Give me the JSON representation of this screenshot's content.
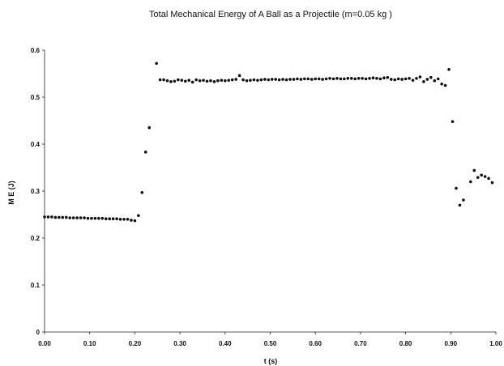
{
  "chart_data": {
    "type": "scatter",
    "title": "Total Mechanical Energy of A Ball as a Projectile (m=0.05 kg )",
    "xlabel": "t (s)",
    "ylabel": "M E (J)",
    "xlim": [
      0,
      1.0
    ],
    "ylim": [
      0,
      0.6
    ],
    "x_ticks": [
      "0.00",
      "0.10",
      "0.20",
      "0.30",
      "0.40",
      "0.50",
      "0.60",
      "0.70",
      "0.80",
      "0.90",
      "1.00"
    ],
    "y_ticks": [
      "0",
      "0.1",
      "0.2",
      "0.3",
      "0.4",
      "0.5",
      "0.6"
    ],
    "grid": false,
    "marker_color": "#111111",
    "series": [
      {
        "points": [
          [
            0.0,
            0.245
          ],
          [
            0.008,
            0.245
          ],
          [
            0.016,
            0.245
          ],
          [
            0.024,
            0.244
          ],
          [
            0.032,
            0.244
          ],
          [
            0.04,
            0.244
          ],
          [
            0.048,
            0.244
          ],
          [
            0.056,
            0.243
          ],
          [
            0.064,
            0.243
          ],
          [
            0.072,
            0.243
          ],
          [
            0.08,
            0.243
          ],
          [
            0.088,
            0.243
          ],
          [
            0.096,
            0.242
          ],
          [
            0.104,
            0.242
          ],
          [
            0.112,
            0.242
          ],
          [
            0.12,
            0.242
          ],
          [
            0.128,
            0.242
          ],
          [
            0.136,
            0.241
          ],
          [
            0.144,
            0.241
          ],
          [
            0.152,
            0.241
          ],
          [
            0.16,
            0.241
          ],
          [
            0.168,
            0.24
          ],
          [
            0.176,
            0.24
          ],
          [
            0.184,
            0.24
          ],
          [
            0.192,
            0.238
          ],
          [
            0.2,
            0.237
          ],
          [
            0.208,
            0.248
          ],
          [
            0.216,
            0.297
          ],
          [
            0.224,
            0.383
          ],
          [
            0.232,
            0.435
          ],
          [
            0.248,
            0.572
          ],
          [
            0.256,
            0.537
          ],
          [
            0.264,
            0.537
          ],
          [
            0.272,
            0.535
          ],
          [
            0.28,
            0.533
          ],
          [
            0.288,
            0.534
          ],
          [
            0.296,
            0.537
          ],
          [
            0.304,
            0.536
          ],
          [
            0.312,
            0.534
          ],
          [
            0.32,
            0.536
          ],
          [
            0.328,
            0.532
          ],
          [
            0.336,
            0.537
          ],
          [
            0.344,
            0.535
          ],
          [
            0.352,
            0.536
          ],
          [
            0.36,
            0.534
          ],
          [
            0.368,
            0.535
          ],
          [
            0.376,
            0.533
          ],
          [
            0.384,
            0.535
          ],
          [
            0.392,
            0.536
          ],
          [
            0.4,
            0.535
          ],
          [
            0.408,
            0.536
          ],
          [
            0.416,
            0.537
          ],
          [
            0.424,
            0.538
          ],
          [
            0.432,
            0.546
          ],
          [
            0.44,
            0.537
          ],
          [
            0.448,
            0.535
          ],
          [
            0.456,
            0.536
          ],
          [
            0.464,
            0.537
          ],
          [
            0.472,
            0.536
          ],
          [
            0.48,
            0.537
          ],
          [
            0.488,
            0.538
          ],
          [
            0.496,
            0.537
          ],
          [
            0.504,
            0.538
          ],
          [
            0.512,
            0.538
          ],
          [
            0.52,
            0.537
          ],
          [
            0.528,
            0.538
          ],
          [
            0.536,
            0.537
          ],
          [
            0.544,
            0.538
          ],
          [
            0.552,
            0.538
          ],
          [
            0.56,
            0.539
          ],
          [
            0.568,
            0.538
          ],
          [
            0.576,
            0.539
          ],
          [
            0.584,
            0.539
          ],
          [
            0.592,
            0.538
          ],
          [
            0.6,
            0.539
          ],
          [
            0.608,
            0.539
          ],
          [
            0.616,
            0.538
          ],
          [
            0.624,
            0.539
          ],
          [
            0.632,
            0.54
          ],
          [
            0.64,
            0.539
          ],
          [
            0.648,
            0.54
          ],
          [
            0.656,
            0.539
          ],
          [
            0.664,
            0.539
          ],
          [
            0.672,
            0.54
          ],
          [
            0.68,
            0.54
          ],
          [
            0.688,
            0.539
          ],
          [
            0.696,
            0.54
          ],
          [
            0.704,
            0.54
          ],
          [
            0.712,
            0.539
          ],
          [
            0.72,
            0.54
          ],
          [
            0.728,
            0.541
          ],
          [
            0.736,
            0.54
          ],
          [
            0.744,
            0.539
          ],
          [
            0.752,
            0.541
          ],
          [
            0.76,
            0.542
          ],
          [
            0.768,
            0.538
          ],
          [
            0.776,
            0.537
          ],
          [
            0.784,
            0.539
          ],
          [
            0.792,
            0.538
          ],
          [
            0.8,
            0.539
          ],
          [
            0.808,
            0.54
          ],
          [
            0.816,
            0.536
          ],
          [
            0.824,
            0.54
          ],
          [
            0.832,
            0.543
          ],
          [
            0.84,
            0.533
          ],
          [
            0.848,
            0.538
          ],
          [
            0.856,
            0.542
          ],
          [
            0.864,
            0.535
          ],
          [
            0.872,
            0.539
          ],
          [
            0.88,
            0.528
          ],
          [
            0.888,
            0.525
          ],
          [
            0.896,
            0.559
          ],
          [
            0.904,
            0.448
          ],
          [
            0.912,
            0.306
          ],
          [
            0.92,
            0.27
          ],
          [
            0.928,
            0.281
          ],
          [
            0.944,
            0.32
          ],
          [
            0.952,
            0.344
          ],
          [
            0.96,
            0.329
          ],
          [
            0.968,
            0.334
          ],
          [
            0.976,
            0.331
          ],
          [
            0.984,
            0.327
          ],
          [
            0.992,
            0.318
          ]
        ]
      }
    ]
  }
}
